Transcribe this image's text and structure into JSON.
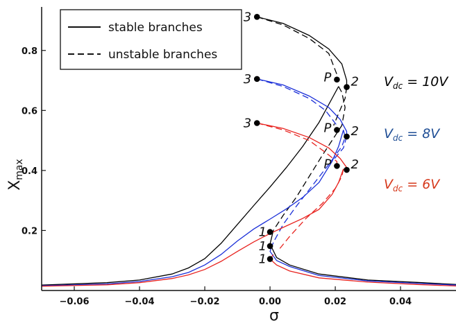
{
  "chart_data": {
    "type": "line",
    "xlabel": "σ",
    "ylabel_main": "X",
    "ylabel_sub": "max",
    "xlim": [
      -0.07,
      0.057
    ],
    "ylim": [
      0.0,
      0.945
    ],
    "xticks": [
      -0.06,
      -0.04,
      -0.02,
      0.0,
      0.02,
      0.04
    ],
    "xtick_labels": [
      "−0.06",
      "−0.04",
      "−0.02",
      "0.00",
      "0.02",
      "0.04"
    ],
    "yticks": [
      0.2,
      0.4,
      0.6,
      0.8
    ],
    "ytick_labels": [
      "0.2",
      "0.4",
      "0.6",
      "0.8"
    ],
    "legend": {
      "position": "top-left",
      "entries": [
        {
          "label": "stable branches",
          "style": "solid"
        },
        {
          "label": "unstable branches",
          "style": "dashed"
        }
      ]
    },
    "series": [
      {
        "color": "#000000",
        "label_main": "V",
        "label_sub": "dc",
        "label_rest": " = 10V",
        "label_color": "#000000",
        "lower_left": [
          [
            -0.07,
            0.018
          ],
          [
            -0.05,
            0.026
          ],
          [
            -0.04,
            0.035
          ],
          [
            -0.03,
            0.055
          ],
          [
            -0.025,
            0.075
          ],
          [
            -0.02,
            0.106
          ],
          [
            -0.015,
            0.157
          ],
          [
            -0.01,
            0.22
          ],
          [
            -0.005,
            0.283
          ],
          [
            0.0,
            0.345
          ],
          [
            0.005,
            0.41
          ],
          [
            0.01,
            0.48
          ],
          [
            0.015,
            0.56
          ],
          [
            0.019,
            0.64
          ],
          [
            0.021,
            0.68
          ]
        ],
        "unstable": [
          [
            0.021,
            0.68
          ],
          [
            0.022,
            0.66
          ],
          [
            0.023,
            0.61
          ],
          [
            0.022,
            0.55
          ],
          [
            0.019,
            0.5
          ],
          [
            0.016,
            0.45
          ],
          [
            0.012,
            0.38
          ],
          [
            0.008,
            0.31
          ],
          [
            0.004,
            0.25
          ],
          [
            0.001,
            0.2
          ]
        ],
        "lower_right": [
          [
            0.001,
            0.2
          ],
          [
            0.0,
            0.155
          ],
          [
            0.002,
            0.11
          ],
          [
            0.006,
            0.085
          ],
          [
            0.015,
            0.055
          ],
          [
            0.03,
            0.035
          ],
          [
            0.045,
            0.027
          ],
          [
            0.057,
            0.02
          ]
        ],
        "upper_stable": [
          [
            -0.004,
            0.912
          ],
          [
            0.004,
            0.89
          ],
          [
            0.012,
            0.85
          ],
          [
            0.018,
            0.805
          ],
          [
            0.022,
            0.755
          ],
          [
            0.0235,
            0.7
          ],
          [
            0.0235,
            0.678
          ]
        ],
        "upper_unstable_a": [
          [
            -0.004,
            0.912
          ],
          [
            0.004,
            0.885
          ],
          [
            0.012,
            0.84
          ],
          [
            0.018,
            0.79
          ],
          [
            0.0205,
            0.72
          ],
          [
            0.0205,
            0.703
          ]
        ],
        "upper_unstable_b": [
          [
            0.0235,
            0.678
          ],
          [
            0.023,
            0.64
          ],
          [
            0.021,
            0.59
          ],
          [
            0.0195,
            0.55
          ]
        ],
        "points": [
          {
            "label": "3",
            "x": -0.004,
            "y": 0.912
          },
          {
            "label": "P",
            "x": 0.0205,
            "y": 0.703
          },
          {
            "label": "2",
            "x": 0.0235,
            "y": 0.678
          },
          {
            "label": "1",
            "x": 0.0,
            "y": 0.195
          }
        ]
      },
      {
        "color": "#1b2fd8",
        "label_main": "V",
        "label_sub": "dc",
        "label_rest": " = 8V",
        "label_color": "#1f4e95",
        "lower_left": [
          [
            -0.07,
            0.016
          ],
          [
            -0.05,
            0.022
          ],
          [
            -0.04,
            0.03
          ],
          [
            -0.03,
            0.046
          ],
          [
            -0.025,
            0.06
          ],
          [
            -0.02,
            0.085
          ],
          [
            -0.015,
            0.12
          ],
          [
            -0.01,
            0.165
          ],
          [
            -0.005,
            0.205
          ],
          [
            0.0,
            0.238
          ],
          [
            0.005,
            0.272
          ],
          [
            0.01,
            0.31
          ],
          [
            0.015,
            0.36
          ],
          [
            0.019,
            0.43
          ],
          [
            0.021,
            0.48
          ],
          [
            0.0225,
            0.535
          ]
        ],
        "unstable": [
          [
            0.0225,
            0.535
          ],
          [
            0.023,
            0.51
          ],
          [
            0.022,
            0.48
          ],
          [
            0.018,
            0.42
          ],
          [
            0.013,
            0.35
          ],
          [
            0.008,
            0.28
          ],
          [
            0.004,
            0.22
          ],
          [
            0.001,
            0.16
          ]
        ],
        "lower_right": [
          [
            0.001,
            0.16
          ],
          [
            0.0,
            0.13
          ],
          [
            0.002,
            0.1
          ],
          [
            0.006,
            0.08
          ],
          [
            0.015,
            0.05
          ],
          [
            0.03,
            0.032
          ],
          [
            0.045,
            0.024
          ],
          [
            0.057,
            0.018
          ]
        ],
        "upper_stable": [
          [
            -0.004,
            0.705
          ],
          [
            0.004,
            0.685
          ],
          [
            0.012,
            0.648
          ],
          [
            0.018,
            0.61
          ],
          [
            0.0215,
            0.57
          ],
          [
            0.0235,
            0.53
          ],
          [
            0.0235,
            0.513
          ]
        ],
        "upper_unstable_a": [
          [
            -0.004,
            0.705
          ],
          [
            0.004,
            0.68
          ],
          [
            0.012,
            0.64
          ],
          [
            0.017,
            0.6
          ],
          [
            0.0205,
            0.55
          ],
          [
            0.0205,
            0.535
          ]
        ],
        "upper_unstable_b": [
          [
            0.0235,
            0.513
          ],
          [
            0.0225,
            0.475
          ],
          [
            0.019,
            0.43
          ]
        ],
        "points": [
          {
            "label": "3",
            "x": -0.004,
            "y": 0.705
          },
          {
            "label": "P",
            "x": 0.0205,
            "y": 0.535
          },
          {
            "label": "2",
            "x": 0.0235,
            "y": 0.513
          },
          {
            "label": "1",
            "x": 0.0,
            "y": 0.148
          }
        ]
      },
      {
        "color": "#e8231f",
        "label_main": "V",
        "label_sub": "dc",
        "label_rest": " = 6V",
        "label_color": "#d63a1d",
        "lower_left": [
          [
            -0.07,
            0.014
          ],
          [
            -0.05,
            0.019
          ],
          [
            -0.04,
            0.026
          ],
          [
            -0.03,
            0.04
          ],
          [
            -0.025,
            0.052
          ],
          [
            -0.02,
            0.07
          ],
          [
            -0.015,
            0.097
          ],
          [
            -0.01,
            0.13
          ],
          [
            -0.005,
            0.162
          ],
          [
            0.0,
            0.19
          ],
          [
            0.005,
            0.215
          ],
          [
            0.01,
            0.24
          ],
          [
            0.015,
            0.27
          ],
          [
            0.019,
            0.32
          ],
          [
            0.021,
            0.36
          ],
          [
            0.0225,
            0.405
          ]
        ],
        "unstable": [
          [
            0.0225,
            0.405
          ],
          [
            0.022,
            0.38
          ],
          [
            0.02,
            0.34
          ],
          [
            0.016,
            0.29
          ],
          [
            0.011,
            0.24
          ],
          [
            0.006,
            0.18
          ],
          [
            0.003,
            0.14
          ]
        ],
        "lower_right": [
          [
            0.001,
            0.12
          ],
          [
            0.0,
            0.105
          ],
          [
            0.002,
            0.085
          ],
          [
            0.006,
            0.065
          ],
          [
            0.015,
            0.042
          ],
          [
            0.03,
            0.028
          ],
          [
            0.045,
            0.02
          ],
          [
            0.057,
            0.015
          ]
        ],
        "upper_stable": [
          [
            -0.004,
            0.558
          ],
          [
            0.004,
            0.54
          ],
          [
            0.012,
            0.51
          ],
          [
            0.018,
            0.475
          ],
          [
            0.0215,
            0.44
          ],
          [
            0.0235,
            0.41
          ],
          [
            0.0235,
            0.402
          ]
        ],
        "upper_unstable_a": [
          [
            -0.004,
            0.558
          ],
          [
            0.004,
            0.535
          ],
          [
            0.012,
            0.5
          ],
          [
            0.017,
            0.46
          ],
          [
            0.0205,
            0.43
          ],
          [
            0.0205,
            0.415
          ]
        ],
        "upper_unstable_b": [],
        "points": [
          {
            "label": "3",
            "x": -0.004,
            "y": 0.558
          },
          {
            "label": "P",
            "x": 0.0205,
            "y": 0.415
          },
          {
            "label": "2",
            "x": 0.0235,
            "y": 0.402
          },
          {
            "label": "1",
            "x": 0.0,
            "y": 0.105
          }
        ]
      }
    ]
  }
}
